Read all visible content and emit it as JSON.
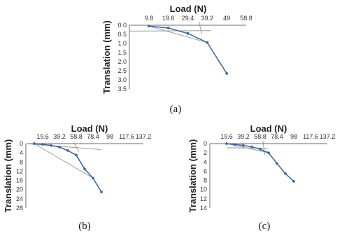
{
  "chart_data": [
    {
      "type": "line",
      "panel_label": "(a)",
      "xlabel": "Load (N)",
      "ylabel": "Translation (mm)",
      "x_ticks": [
        "9.8",
        "19.6",
        "29.4",
        "39.2",
        "49",
        "58.8"
      ],
      "y_ticks": [
        "0.0",
        "0.5",
        "1.0",
        "1.5",
        "2.0",
        "2.5",
        "3.0",
        "3.5"
      ],
      "xlim": [
        0,
        58.8
      ],
      "ylim": [
        0,
        3.5
      ],
      "x_axis_position": "top",
      "y_axis_inverted": true,
      "grid": false,
      "series": [
        {
          "x": [
            9.8,
            19.6,
            29.4,
            39.2,
            49.0
          ],
          "values": [
            0.05,
            0.15,
            0.45,
            0.95,
            2.65
          ],
          "color": "#3d6aa0",
          "marker": "dot"
        }
      ],
      "tangent_lines": [
        {
          "x": [
            0,
            41
          ],
          "values": [
            0.32,
            0.3
          ],
          "color": "#9a9a9a"
        },
        {
          "x": [
            9.8,
            39.2
          ],
          "values": [
            0.05,
            0.95
          ],
          "color": "#9a9a9a"
        },
        {
          "x": [
            35.0,
            36.5
          ],
          "values": [
            -0.2,
            0.5
          ],
          "color": "#9a9a9a"
        }
      ]
    },
    {
      "type": "line",
      "panel_label": "(b)",
      "xlabel": "Load (N)",
      "ylabel": "Translation (mm)",
      "x_ticks": [
        "19.6",
        "39.2",
        "58.8",
        "78.4",
        "98",
        "117.6",
        "137.2"
      ],
      "y_ticks": [
        "0",
        "4",
        "8",
        "12",
        "16",
        "20",
        "24",
        "28"
      ],
      "xlim": [
        0,
        137.2
      ],
      "ylim": [
        0,
        28
      ],
      "x_axis_position": "top",
      "y_axis_inverted": true,
      "grid": false,
      "series": [
        {
          "x": [
            9.8,
            19.6,
            29.4,
            39.2,
            49.0,
            58.8,
            68.6,
            78.4,
            88.2
          ],
          "values": [
            0.0,
            0.3,
            0.8,
            1.5,
            3.0,
            5.0,
            11.0,
            15.0,
            21.0
          ],
          "color": "#3d6aa0",
          "marker": "dot"
        }
      ],
      "tangent_lines": [
        {
          "x": [
            0,
            88
          ],
          "values": [
            0.0,
            2.6
          ],
          "color": "#9a9a9a"
        },
        {
          "x": [
            9.8,
            78.4
          ],
          "values": [
            0.0,
            15.0
          ],
          "color": "#9a9a9a"
        },
        {
          "x": [
            56,
            62
          ],
          "values": [
            -0.6,
            3.5
          ],
          "color": "#9a9a9a"
        }
      ]
    },
    {
      "type": "line",
      "panel_label": "(c)",
      "xlabel": "Load (N)",
      "ylabel": "Translation (mm)",
      "x_ticks": [
        "19.6",
        "39.2",
        "58.8",
        "78.4",
        "98",
        "117.6",
        "137.2"
      ],
      "y_ticks": [
        "0",
        "2",
        "4",
        "6",
        "8",
        "10",
        "12",
        "14"
      ],
      "xlim": [
        0,
        137.2
      ],
      "ylim": [
        0,
        14
      ],
      "x_axis_position": "top",
      "y_axis_inverted": true,
      "grid": false,
      "series": [
        {
          "x": [
            19.6,
            29.4,
            39.2,
            49.0,
            58.8,
            68.6,
            78.4,
            88.2,
            98.0
          ],
          "values": [
            0.0,
            0.2,
            0.4,
            0.7,
            1.2,
            2.0,
            4.3,
            6.5,
            8.2
          ],
          "color": "#3d6aa0",
          "marker": "dot"
        }
      ],
      "tangent_lines": [
        {
          "x": [
            19.6,
            68
          ],
          "values": [
            0.9,
            1.0
          ],
          "color": "#9a9a9a"
        },
        {
          "x": [
            19.6,
            68.6
          ],
          "values": [
            0.0,
            2.0
          ],
          "color": "#9a9a9a"
        },
        {
          "x": [
            62,
            64
          ],
          "values": [
            -0.6,
            2.5
          ],
          "color": "#9a9a9a"
        }
      ]
    }
  ]
}
